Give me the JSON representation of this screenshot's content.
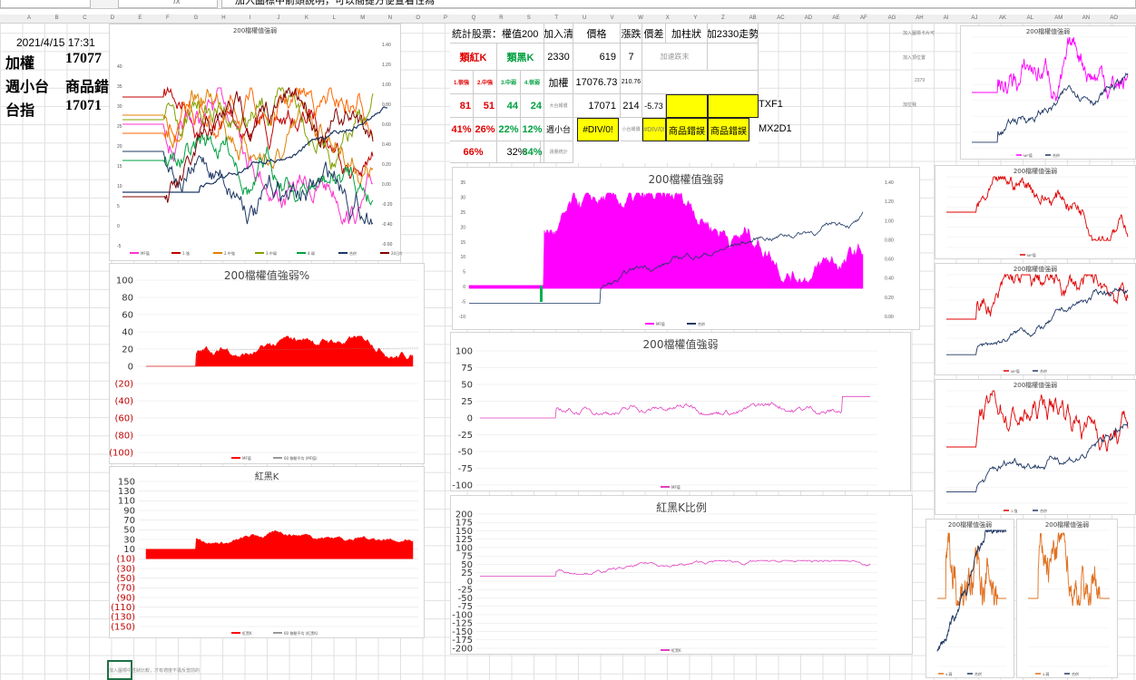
{
  "formula_bar": {
    "text": "加入圖標中箭頭說明，可以簡捷方便查看性為"
  },
  "columns": [
    "A",
    "B",
    "C",
    "D",
    "E",
    "F",
    "G",
    "H",
    "I",
    "J",
    "K",
    "L",
    "M",
    "N",
    "O",
    "P",
    "Q",
    "R",
    "S",
    "T",
    "U",
    "V",
    "W",
    "X",
    "Y",
    "Z",
    "AB",
    "AC",
    "AD",
    "AE",
    "AF",
    "AG",
    "AH",
    "AI",
    "AJ",
    "AK",
    "AL",
    "AM",
    "AN",
    "AO"
  ],
  "left_panel": {
    "datetime": "2021/4/15 17:31",
    "rows": [
      {
        "label": "加權",
        "value": "17077"
      },
      {
        "label": "週小台",
        "value": "商品錯誤"
      },
      {
        "label": "台指",
        "value": "17071"
      }
    ]
  },
  "stats_table": {
    "header": "統計股票：權值200",
    "header2": "加入清",
    "col_price": "價格",
    "col_change": "漲跌",
    "col_spread": "價差",
    "col_bar": "加柱狀",
    "col_trend": "加2330走勢",
    "red_k": "類紅K",
    "black_k": "類黑K",
    "cats": [
      "1.很強",
      "2.中強",
      "3.中弱",
      "4.很弱"
    ],
    "counts": [
      "81",
      "51",
      "44",
      "24"
    ],
    "pcts": [
      "41%",
      "26%",
      "22%",
      "12%"
    ],
    "sum_red": "66%",
    "sum_mid": "32%",
    "sum_black": "34%",
    "stock": "2330",
    "stock_price": "619",
    "stock_chg": "7",
    "stock_note": "加速跌末",
    "idx": "加權",
    "idx_price": "17076.73",
    "idx_small": "210.76",
    "big_label": "大台報價",
    "big_price": "17071",
    "big_chg": "214",
    "big_spread": "-5.73",
    "txf": "TXF1",
    "week": "週小台",
    "div0": "#DIV/0!",
    "small_label": "小台報價",
    "div_small": "#DIV/0!",
    "err1": "商品錯誤",
    "err2": "商品錯誤",
    "mx": "MX2D1",
    "vol_label": "週量統計",
    "right_notes": [
      "加入圖標卡片可",
      "加入頂位置",
      "2379",
      "加位我"
    ]
  },
  "chart_main_top": {
    "title": "200檔權值強弱",
    "legend": [
      "MF強",
      "MF值",
      "1.強",
      "2.中強",
      "3.中弱",
      "4.弱",
      "合併",
      "20日均"
    ]
  },
  "chart_pct": {
    "title": "200檔權值強弱%",
    "yticks": [
      "100",
      "80",
      "60",
      "40",
      "20",
      "0",
      "(20)",
      "(40)",
      "(60)",
      "(80)",
      "(100)"
    ],
    "legend": [
      "MF值",
      "60 移動平均 (MF值)"
    ]
  },
  "chart_redk": {
    "title": "紅黑K",
    "yticks": [
      "150",
      "130",
      "110",
      "90",
      "70",
      "50",
      "30",
      "10",
      "(10)",
      "(30)",
      "(50)",
      "(70)",
      "(90)",
      "(110)",
      "(130)",
      "(150)"
    ],
    "legend": [
      "紅黑K",
      "60 移動平均 (紅黑K)"
    ]
  },
  "chart_center_top": {
    "title": "200檔權值強弱",
    "yticks": [
      "35",
      "30",
      "25",
      "20",
      "15",
      "10",
      "5",
      "0",
      "-5",
      "-10"
    ],
    "y2ticks": [
      "1.40",
      "1.20",
      "1.00",
      "0.80",
      "0.60",
      "0.40",
      "0.20",
      "0.00"
    ],
    "legend": [
      "MF值",
      "合併"
    ]
  },
  "chart_center_mid": {
    "title": "200檔權值強弱",
    "yticks": [
      "100",
      "75",
      "50",
      "25",
      "0",
      "-25",
      "-50",
      "-75",
      "-100"
    ],
    "legend": [
      "MF值"
    ]
  },
  "chart_center_bot": {
    "title": "紅黑K比例",
    "yticks": [
      "200",
      "175",
      "150",
      "125",
      "100",
      "75",
      "50",
      "25",
      "0",
      "-25",
      "-50",
      "-75",
      "-100",
      "-125",
      "-150",
      "-175",
      "-200"
    ],
    "legend": [
      "紅黑K"
    ]
  },
  "right_charts": [
    {
      "title": "200檔權值強弱",
      "legend": [
        "MF值",
        "合併"
      ]
    },
    {
      "title": "200檔權值強弱",
      "legend": [
        "MF值"
      ]
    },
    {
      "title": "200檔權值強弱",
      "legend": [
        "MF值",
        "合併"
      ]
    },
    {
      "title": "200檔權值強弱",
      "legend": [
        "1.強",
        "合併"
      ]
    },
    {
      "title": "200檔權值強弱",
      "legend": [
        "4.弱",
        "合併"
      ]
    },
    {
      "title": "200檔權值強弱",
      "legend": [
        "4.弱",
        "合併"
      ]
    }
  ],
  "footer_note": "加入圖標中性狀比較，才有適度不違反當前的"
}
